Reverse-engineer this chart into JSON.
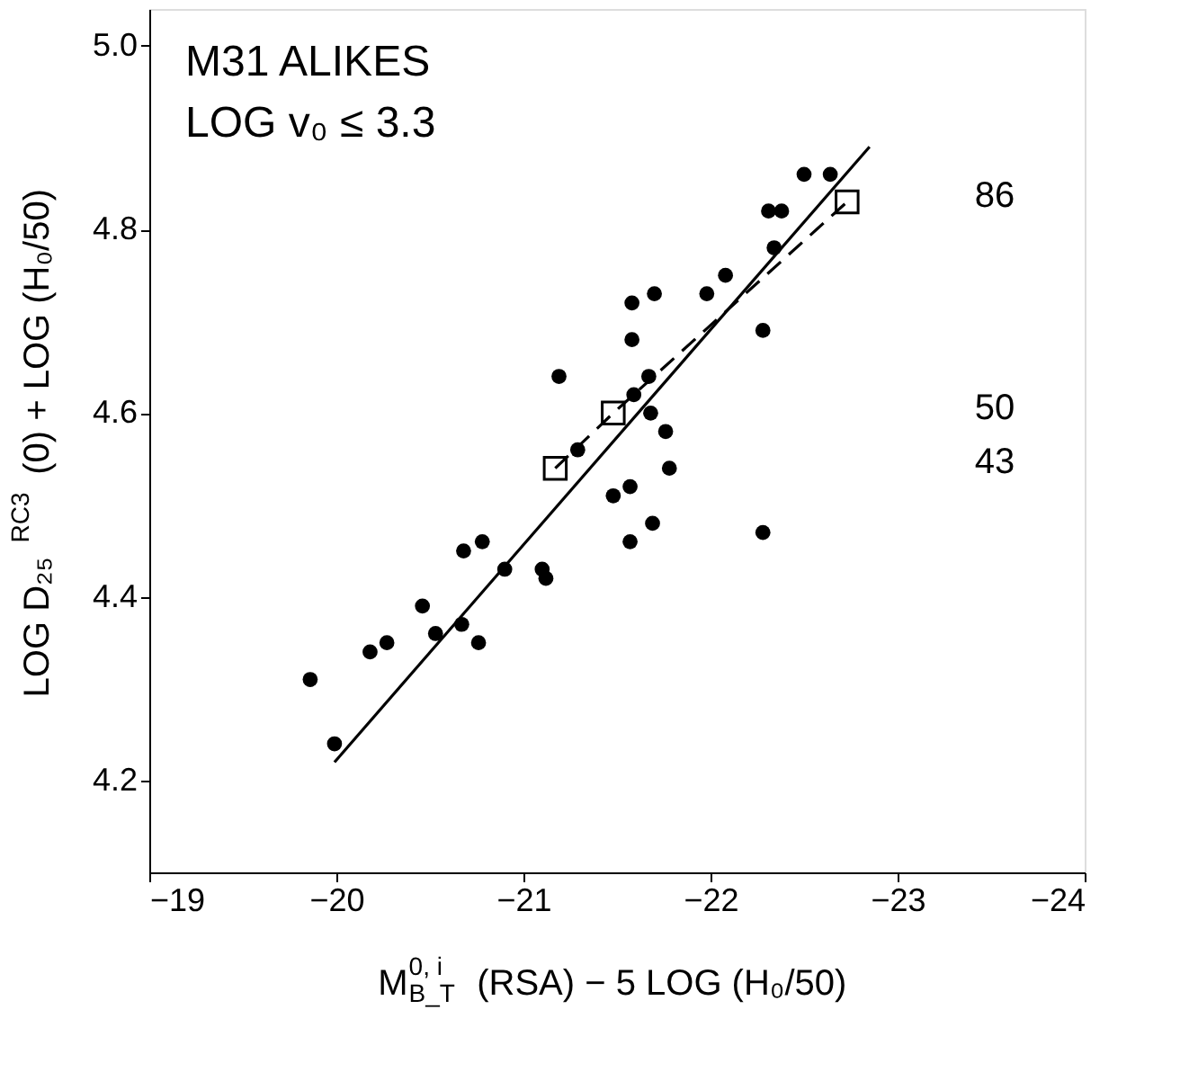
{
  "chart_data": {
    "type": "scatter",
    "xlabel": "M$^{0, i}$$_{B_T}$ (RSA) − 5 LOG (H₀/50)",
    "ylabel": "LOG D₂₅$^{RC3}$ (0) + LOG (H₀/50)",
    "xlim": [
      -19,
      -24
    ],
    "xticks": [
      -19,
      -20,
      -21,
      -22,
      -23,
      -24
    ],
    "ylim": [
      4.1,
      5.04
    ],
    "yticks": [
      4.2,
      4.4,
      4.6,
      4.8,
      {
        "value": 5.0,
        "label": "5.0"
      }
    ],
    "grid": false,
    "annotations": [
      "M31 ALIKES",
      "LOG v₀ ≤ 3.3",
      "86",
      "50",
      "43"
    ],
    "series": [
      {
        "marker": "circle",
        "color": "#000000",
        "x": [
          -19.86,
          -19.99,
          -20.18,
          -20.27,
          -20.46,
          -20.53,
          -20.67,
          -20.76,
          -20.68,
          -20.78,
          -20.9,
          -21.1,
          -21.12,
          -21.29,
          -21.48,
          -21.57,
          -21.57,
          -21.69,
          -21.76,
          -21.78,
          -21.68,
          -22.28,
          -21.19,
          -21.59,
          -21.67,
          -21.58,
          -21.58,
          -21.7,
          -21.98,
          -22.08,
          -22.28,
          -22.34,
          -22.31,
          -22.38,
          -22.5,
          -22.64
        ],
        "values": [
          4.31,
          4.24,
          4.34,
          4.35,
          4.39,
          4.36,
          4.37,
          4.35,
          4.45,
          4.46,
          4.43,
          4.43,
          4.42,
          4.56,
          4.51,
          4.52,
          4.46,
          4.48,
          4.58,
          4.54,
          4.6,
          4.47,
          4.64,
          4.62,
          4.64,
          4.68,
          4.72,
          4.73,
          4.73,
          4.75,
          4.69,
          4.78,
          4.82,
          4.82,
          4.86,
          4.86
        ]
      },
      {
        "type": "line",
        "line_style": "solid",
        "color": "#000000",
        "x": [
          -19.99,
          -22.85
        ],
        "values": [
          4.22,
          4.89
        ]
      },
      {
        "type": "line",
        "line_style": "dashed",
        "color": "#000000",
        "x": [
          -21.17,
          -21.48,
          -22.73
        ],
        "values": [
          4.54,
          4.6,
          4.83
        ]
      },
      {
        "marker": "square",
        "color": "#000000",
        "x": [
          -21.17,
          -21.48,
          -22.73
        ],
        "values": [
          4.54,
          4.6,
          4.83
        ]
      }
    ]
  }
}
